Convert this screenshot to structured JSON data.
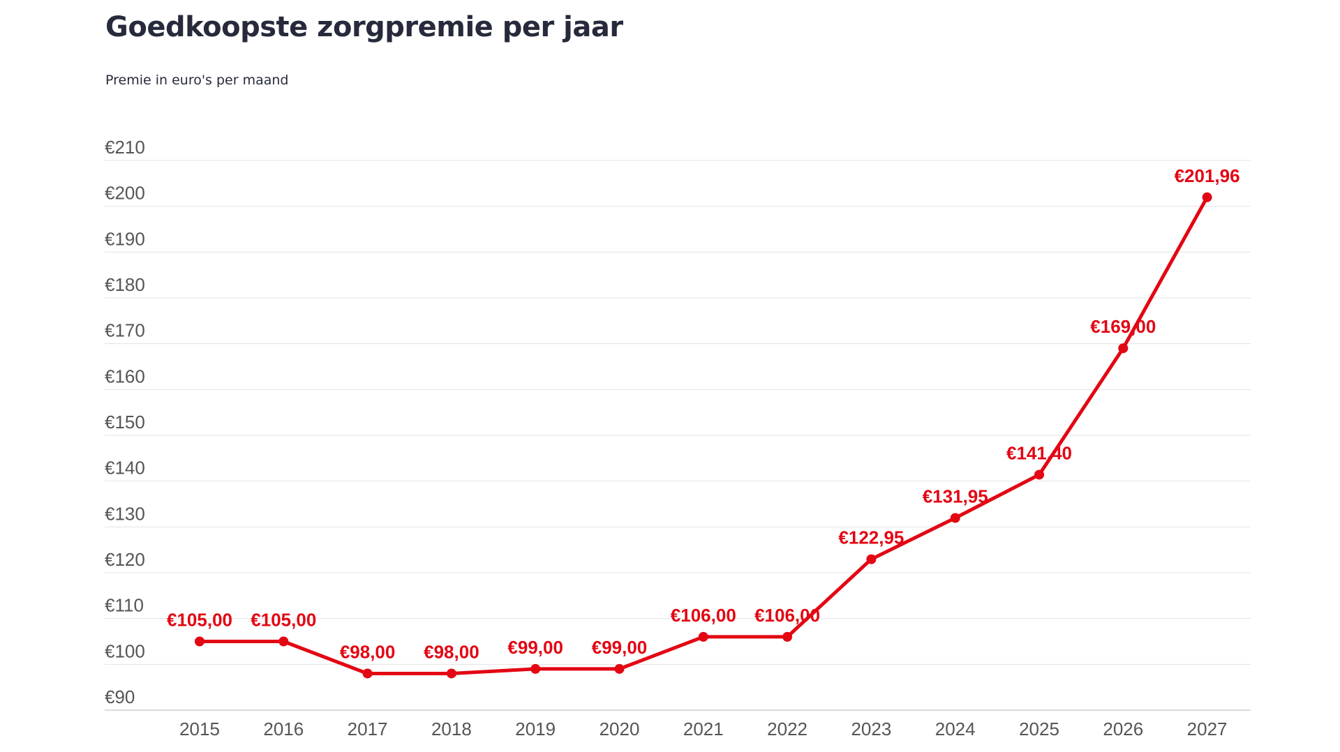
{
  "chart_data": {
    "type": "line",
    "title": "Goedkoopste zorgpremie per jaar",
    "subtitle": "Premie in euro's per maand",
    "xlabel": "",
    "ylabel": "",
    "ylim": [
      90,
      210
    ],
    "y_ticks": [
      90,
      100,
      110,
      120,
      130,
      140,
      150,
      160,
      170,
      180,
      190,
      200,
      210
    ],
    "y_tick_labels": [
      "€90",
      "€100",
      "€110",
      "€120",
      "€130",
      "€140",
      "€150",
      "€160",
      "€170",
      "€180",
      "€190",
      "€200",
      "€210"
    ],
    "grid": true,
    "legend": "none",
    "categories": [
      "2015",
      "2016",
      "2017",
      "2018",
      "2019",
      "2020",
      "2021",
      "2022",
      "2023",
      "2024",
      "2025",
      "2026",
      "2027"
    ],
    "series": [
      {
        "values": [
          105.0,
          105.0,
          98.0,
          98.0,
          99.0,
          99.0,
          106.0,
          106.0,
          122.95,
          131.95,
          141.4,
          169.0,
          201.96
        ],
        "data_labels": [
          "€105,00",
          "€105,00",
          "€98,00",
          "€98,00",
          "€99,00",
          "€99,00",
          "€106,00",
          "€106,00",
          "€122,95",
          "€131,95",
          "€141,40",
          "€169,00",
          "€201,96"
        ]
      }
    ],
    "colors": {
      "line": "#e30613",
      "grid": "#e3e3e3",
      "tick_text": "#555555",
      "title_text": "#262a3b"
    }
  }
}
